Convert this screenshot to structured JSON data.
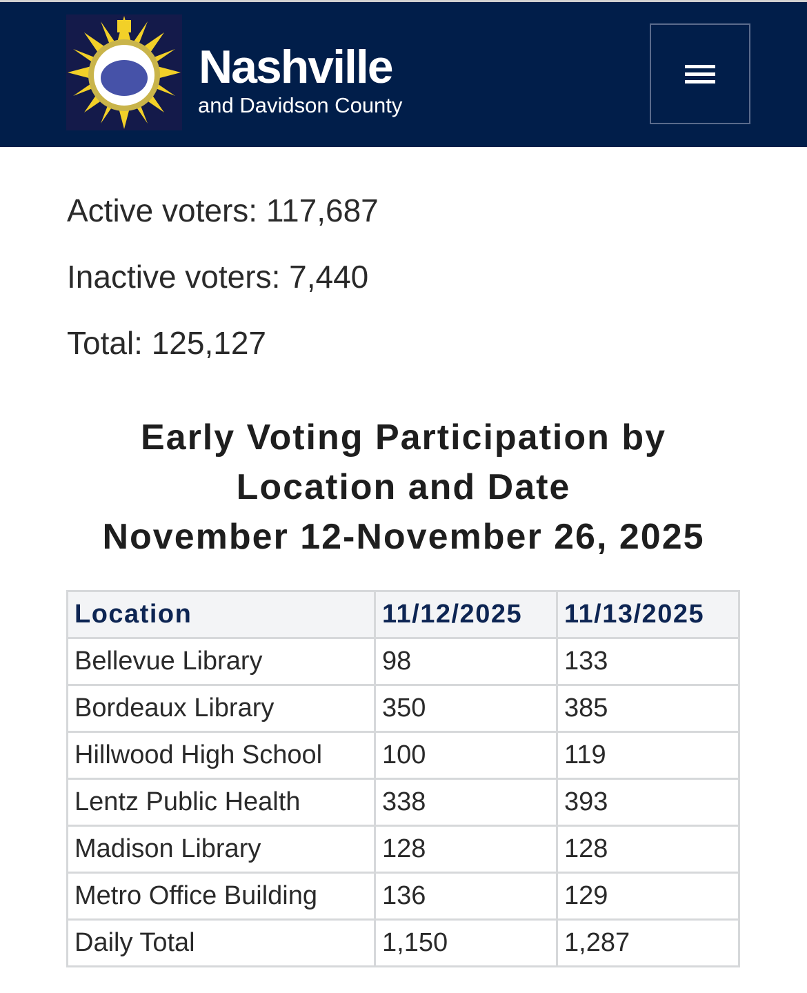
{
  "header": {
    "brand_title": "Nashville",
    "brand_subtitle": "and Davidson County",
    "menu_icon": "hamburger-icon",
    "bg_color": "#011e4a"
  },
  "stats": {
    "active": "Active voters: 117,687",
    "inactive": "Inactive voters: 7,440",
    "total": "Total: 125,127"
  },
  "heading": {
    "line1": "Early Voting Participation by",
    "line2": "Location and Date",
    "line3": "November 12-November 26, 2025"
  },
  "table": {
    "columns": [
      "Location",
      "11/12/2025",
      "11/13/2025"
    ],
    "rows": [
      [
        "Bellevue Library",
        "98",
        "133"
      ],
      [
        "Bordeaux Library",
        "350",
        "385"
      ],
      [
        "Hillwood High School",
        "100",
        "119"
      ],
      [
        "Lentz Public Health",
        "338",
        "393"
      ],
      [
        "Madison Library",
        "128",
        "128"
      ],
      [
        "Metro Office Building",
        "136",
        "129"
      ],
      [
        "Daily Total",
        "1,150",
        "1,287"
      ]
    ]
  }
}
